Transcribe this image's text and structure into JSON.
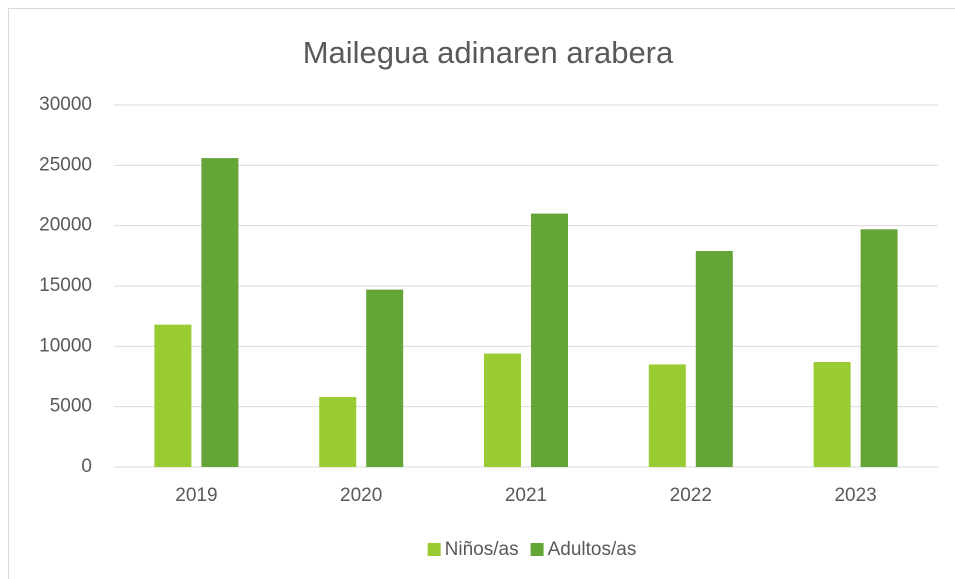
{
  "chart_data": {
    "type": "bar",
    "title": "Mailegua adinaren arabera",
    "categories": [
      "2019",
      "2020",
      "2021",
      "2022",
      "2023"
    ],
    "series": [
      {
        "name": "Niños/as",
        "color": "#99cc33",
        "values": [
          11800,
          5800,
          9400,
          8500,
          8700
        ]
      },
      {
        "name": "Adultos/as",
        "color": "#63a537",
        "values": [
          25600,
          14700,
          21000,
          17900,
          19700
        ]
      }
    ],
    "ylim": [
      0,
      30000
    ],
    "yticks": [
      0,
      5000,
      10000,
      15000,
      20000,
      25000,
      30000
    ],
    "grid": true,
    "legend": "bottom"
  }
}
